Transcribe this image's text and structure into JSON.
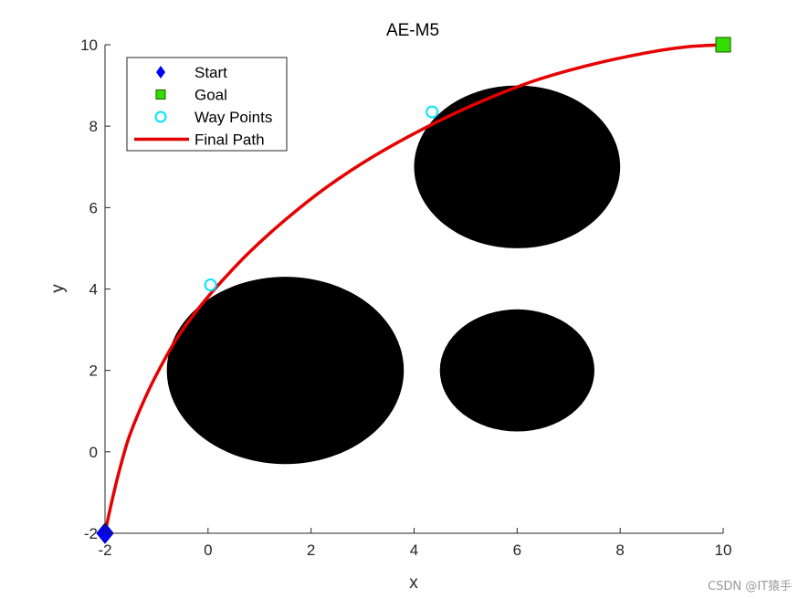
{
  "chart_data": {
    "type": "scatter",
    "title": "AE-M5",
    "xlabel": "x",
    "ylabel": "y",
    "xlim": [
      -2,
      10
    ],
    "ylim": [
      -2,
      10
    ],
    "xticks": [
      -2,
      0,
      2,
      4,
      6,
      8,
      10
    ],
    "yticks": [
      -2,
      0,
      2,
      4,
      6,
      8,
      10
    ],
    "grid": false,
    "legend_position": "top-left",
    "obstacles": [
      {
        "cx": 1.5,
        "cy": 2.0,
        "rx": 2.3,
        "ry": 2.3
      },
      {
        "cx": 6.0,
        "cy": 7.0,
        "rx": 2.0,
        "ry": 2.0
      },
      {
        "cx": 6.0,
        "cy": 2.0,
        "rx": 1.5,
        "ry": 1.5
      }
    ],
    "series": [
      {
        "name": "Start",
        "marker": "diamond",
        "color": "#0000ff",
        "points": [
          [
            -2,
            -2
          ]
        ]
      },
      {
        "name": "Goal",
        "marker": "square",
        "color": "#33dd00",
        "points": [
          [
            10,
            10
          ]
        ]
      },
      {
        "name": "Way Points",
        "marker": "circle",
        "color": "#00e5ff",
        "points": [
          [
            0.05,
            4.1
          ],
          [
            4.35,
            8.35
          ]
        ]
      },
      {
        "name": "Final Path",
        "marker": "line",
        "color": "#e60000",
        "points": [
          [
            -2.0,
            -2.0
          ],
          [
            -1.9,
            -1.4
          ],
          [
            -1.75,
            -0.6
          ],
          [
            -1.55,
            0.3
          ],
          [
            -1.3,
            1.1
          ],
          [
            -1.0,
            1.9
          ],
          [
            -0.6,
            2.8
          ],
          [
            -0.2,
            3.5
          ],
          [
            0.2,
            4.1
          ],
          [
            0.8,
            4.9
          ],
          [
            1.5,
            5.7
          ],
          [
            2.3,
            6.5
          ],
          [
            3.2,
            7.25
          ],
          [
            4.2,
            7.95
          ],
          [
            5.2,
            8.55
          ],
          [
            6.3,
            9.1
          ],
          [
            7.4,
            9.5
          ],
          [
            8.5,
            9.8
          ],
          [
            9.3,
            9.95
          ],
          [
            10.0,
            10.0
          ]
        ]
      }
    ]
  },
  "watermark": "CSDN @IT猿手"
}
